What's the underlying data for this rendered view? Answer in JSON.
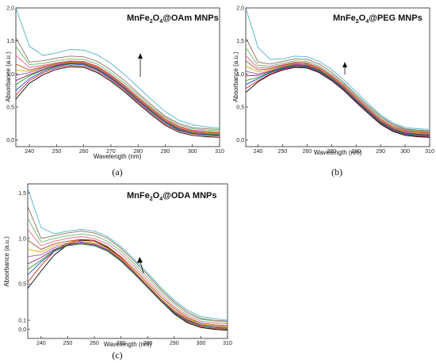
{
  "panels": [
    {
      "id": "a",
      "title_main": "MnFe",
      "title_sub1": "2",
      "title_mid": "O",
      "title_sub2": "4",
      "title_tail": "@OAm MNPs",
      "caption": "(a)",
      "xlabel": "Wavelength (nm)",
      "ylabel": "Absorbance (a.u.)",
      "xticks": [
        "240",
        "250",
        "260",
        "270",
        "280",
        "290",
        "300",
        "310"
      ],
      "yticks": [
        "0,0",
        "0,5",
        "1,0",
        "1,5",
        "2,0"
      ]
    },
    {
      "id": "b",
      "title_main": "MnFe",
      "title_sub1": "2",
      "title_mid": "O",
      "title_sub2": "4",
      "title_tail": "@PEG MNPs",
      "caption": "(b)",
      "xlabel": "Wavelength (nm)",
      "ylabel": "Absorbance (a.u.)",
      "xticks": [
        "240",
        "250",
        "260",
        "270",
        "280",
        "290",
        "300",
        "310"
      ],
      "yticks": [
        "0,0",
        "0,5",
        "1,0",
        "1,5",
        "2,0"
      ]
    },
    {
      "id": "c",
      "title_main": "MnFe",
      "title_sub1": "2",
      "title_mid": "O",
      "title_sub2": "4",
      "title_tail": "@ODA MNPs",
      "caption": "(c)",
      "xlabel": "Wavelength (nm)",
      "ylabel": "Absorbance (a.u.)",
      "xticks": [
        "240",
        "250",
        "260",
        "270",
        "280",
        "290",
        "300",
        "310"
      ],
      "yticks": [
        "0,0",
        "0,1",
        "0,5",
        "1,0",
        "1,5"
      ]
    }
  ],
  "chart_data": [
    {
      "type": "line",
      "panel": "a",
      "xlabel": "Wavelength (nm)",
      "ylabel": "Absorbance (a.u.)",
      "xlim": [
        235,
        310
      ],
      "ylim": [
        -0.1,
        2.0
      ],
      "x": [
        235,
        240,
        245,
        250,
        255,
        260,
        265,
        270,
        275,
        280,
        285,
        290,
        295,
        300,
        305,
        310
      ],
      "colors": [
        "#000000",
        "#d62728",
        "#1f3fd8",
        "#1a9a1a",
        "#8b1a6b",
        "#9b59b6",
        "#e6a800",
        "#a0522d",
        "#f06292",
        "#66bb6a",
        "#8d6e63",
        "#4fb3c8"
      ],
      "series": [
        {
          "values": [
            0.62,
            0.86,
            0.99,
            1.07,
            1.11,
            1.1,
            1.02,
            0.89,
            0.73,
            0.55,
            0.38,
            0.22,
            0.12,
            0.07,
            0.05,
            0.04
          ]
        },
        {
          "values": [
            0.68,
            0.9,
            1.02,
            1.09,
            1.13,
            1.12,
            1.04,
            0.91,
            0.75,
            0.57,
            0.4,
            0.24,
            0.14,
            0.09,
            0.07,
            0.06
          ]
        },
        {
          "values": [
            0.75,
            0.93,
            1.04,
            1.11,
            1.15,
            1.14,
            1.06,
            0.93,
            0.77,
            0.59,
            0.42,
            0.26,
            0.15,
            0.1,
            0.08,
            0.07
          ]
        },
        {
          "values": [
            0.84,
            0.97,
            1.06,
            1.12,
            1.16,
            1.15,
            1.07,
            0.94,
            0.78,
            0.6,
            0.43,
            0.27,
            0.16,
            0.11,
            0.09,
            0.08
          ]
        },
        {
          "values": [
            0.9,
            0.99,
            1.07,
            1.13,
            1.17,
            1.16,
            1.08,
            0.95,
            0.79,
            0.61,
            0.44,
            0.28,
            0.17,
            0.12,
            0.1,
            0.09
          ]
        },
        {
          "values": [
            0.98,
            1.02,
            1.09,
            1.14,
            1.18,
            1.17,
            1.09,
            0.96,
            0.8,
            0.62,
            0.45,
            0.29,
            0.18,
            0.12,
            0.1,
            0.09
          ]
        },
        {
          "values": [
            1.06,
            1.04,
            1.1,
            1.15,
            1.18,
            1.17,
            1.1,
            0.97,
            0.81,
            0.63,
            0.46,
            0.3,
            0.19,
            0.13,
            0.11,
            0.1
          ]
        },
        {
          "values": [
            1.15,
            1.06,
            1.11,
            1.16,
            1.19,
            1.18,
            1.11,
            0.98,
            0.82,
            0.64,
            0.47,
            0.31,
            0.2,
            0.14,
            0.12,
            0.11
          ]
        },
        {
          "values": [
            1.28,
            1.1,
            1.13,
            1.17,
            1.2,
            1.19,
            1.12,
            0.99,
            0.83,
            0.65,
            0.48,
            0.32,
            0.21,
            0.15,
            0.13,
            0.12
          ]
        },
        {
          "values": [
            1.42,
            1.14,
            1.16,
            1.2,
            1.23,
            1.22,
            1.15,
            1.02,
            0.86,
            0.68,
            0.5,
            0.34,
            0.23,
            0.17,
            0.15,
            0.14
          ]
        },
        {
          "values": [
            1.55,
            1.18,
            1.2,
            1.24,
            1.27,
            1.26,
            1.19,
            1.06,
            0.9,
            0.71,
            0.53,
            0.36,
            0.25,
            0.19,
            0.17,
            0.16
          ]
        },
        {
          "values": [
            2.0,
            1.42,
            1.28,
            1.32,
            1.37,
            1.36,
            1.29,
            1.16,
            0.99,
            0.8,
            0.61,
            0.43,
            0.3,
            0.23,
            0.2,
            0.18
          ]
        }
      ]
    },
    {
      "type": "line",
      "panel": "b",
      "xlabel": "Wavelength (nm)",
      "ylabel": "Absorbance (a.u.)",
      "xlim": [
        235,
        310
      ],
      "ylim": [
        -0.1,
        2.0
      ],
      "x": [
        235,
        240,
        245,
        250,
        255,
        260,
        265,
        270,
        275,
        280,
        285,
        290,
        295,
        300,
        305,
        310
      ],
      "colors": [
        "#000000",
        "#d62728",
        "#1f3fd8",
        "#1a9a1a",
        "#8b1a6b",
        "#9b59b6",
        "#e6a800",
        "#a0522d",
        "#f06292",
        "#66bb6a",
        "#8d6e63",
        "#4fb3c8"
      ],
      "series": [
        {
          "values": [
            0.72,
            0.88,
            0.99,
            1.06,
            1.1,
            1.09,
            1.02,
            0.9,
            0.75,
            0.57,
            0.4,
            0.24,
            0.13,
            0.07,
            0.05,
            0.04
          ]
        },
        {
          "values": [
            0.78,
            0.9,
            1.0,
            1.07,
            1.11,
            1.1,
            1.03,
            0.91,
            0.76,
            0.58,
            0.41,
            0.25,
            0.14,
            0.08,
            0.06,
            0.05
          ]
        },
        {
          "values": [
            0.84,
            0.93,
            1.02,
            1.08,
            1.12,
            1.11,
            1.04,
            0.92,
            0.77,
            0.59,
            0.42,
            0.26,
            0.15,
            0.09,
            0.07,
            0.06
          ]
        },
        {
          "values": [
            0.9,
            0.95,
            1.03,
            1.09,
            1.13,
            1.12,
            1.05,
            0.93,
            0.78,
            0.6,
            0.43,
            0.27,
            0.16,
            0.1,
            0.08,
            0.07
          ]
        },
        {
          "values": [
            0.97,
            0.98,
            1.04,
            1.1,
            1.14,
            1.13,
            1.06,
            0.94,
            0.79,
            0.61,
            0.44,
            0.28,
            0.17,
            0.11,
            0.09,
            0.08
          ]
        },
        {
          "values": [
            1.04,
            1.0,
            1.05,
            1.11,
            1.15,
            1.14,
            1.07,
            0.95,
            0.8,
            0.62,
            0.45,
            0.29,
            0.18,
            0.12,
            0.1,
            0.09
          ]
        },
        {
          "values": [
            1.12,
            1.03,
            1.07,
            1.12,
            1.16,
            1.15,
            1.08,
            0.96,
            0.81,
            0.63,
            0.46,
            0.3,
            0.19,
            0.13,
            0.11,
            0.1
          ]
        },
        {
          "values": [
            1.2,
            1.06,
            1.08,
            1.13,
            1.17,
            1.16,
            1.09,
            0.97,
            0.82,
            0.64,
            0.47,
            0.31,
            0.2,
            0.14,
            0.12,
            0.11
          ]
        },
        {
          "values": [
            1.28,
            1.09,
            1.1,
            1.14,
            1.18,
            1.17,
            1.1,
            0.98,
            0.83,
            0.65,
            0.48,
            0.32,
            0.21,
            0.15,
            0.13,
            0.12
          ]
        },
        {
          "values": [
            1.4,
            1.13,
            1.12,
            1.16,
            1.2,
            1.19,
            1.12,
            1.0,
            0.85,
            0.67,
            0.5,
            0.34,
            0.23,
            0.16,
            0.14,
            0.13
          ]
        },
        {
          "values": [
            1.55,
            1.18,
            1.15,
            1.19,
            1.23,
            1.22,
            1.15,
            1.03,
            0.87,
            0.69,
            0.52,
            0.36,
            0.24,
            0.17,
            0.15,
            0.14
          ]
        },
        {
          "values": [
            2.0,
            1.4,
            1.22,
            1.23,
            1.27,
            1.26,
            1.19,
            1.07,
            0.91,
            0.73,
            0.55,
            0.38,
            0.26,
            0.19,
            0.17,
            0.16
          ]
        }
      ]
    },
    {
      "type": "line",
      "panel": "c",
      "xlabel": "Wavelength (nm)",
      "ylabel": "Absorbance (a.u.)",
      "xlim": [
        235,
        310
      ],
      "ylim": [
        -0.1,
        1.6
      ],
      "x": [
        235,
        240,
        245,
        250,
        255,
        260,
        265,
        270,
        275,
        280,
        285,
        290,
        295,
        300,
        305,
        310
      ],
      "colors": [
        "#000000",
        "#d62728",
        "#1f3fd8",
        "#1a9a1a",
        "#8b1a6b",
        "#9b59b6",
        "#e6a800",
        "#a0522d",
        "#f06292",
        "#66bb6a",
        "#8d6e63",
        "#4fb3c8"
      ],
      "series": [
        {
          "values": [
            0.45,
            0.64,
            0.82,
            0.93,
            0.98,
            0.97,
            0.9,
            0.78,
            0.63,
            0.47,
            0.31,
            0.17,
            0.07,
            0.02,
            0.0,
            -0.01
          ]
        },
        {
          "values": [
            0.52,
            0.7,
            0.86,
            0.95,
            0.99,
            0.98,
            0.91,
            0.79,
            0.64,
            0.48,
            0.32,
            0.18,
            0.08,
            0.03,
            0.01,
            0.0
          ]
        },
        {
          "values": [
            0.6,
            0.74,
            0.86,
            0.92,
            0.94,
            0.92,
            0.86,
            0.75,
            0.61,
            0.46,
            0.31,
            0.18,
            0.09,
            0.04,
            0.02,
            0.01
          ]
        },
        {
          "values": [
            0.66,
            0.76,
            0.87,
            0.92,
            0.94,
            0.92,
            0.86,
            0.75,
            0.61,
            0.46,
            0.31,
            0.18,
            0.09,
            0.04,
            0.02,
            0.01
          ]
        },
        {
          "values": [
            0.72,
            0.79,
            0.88,
            0.93,
            0.95,
            0.93,
            0.87,
            0.76,
            0.62,
            0.47,
            0.32,
            0.19,
            0.1,
            0.05,
            0.03,
            0.02
          ]
        },
        {
          "values": [
            0.8,
            0.82,
            0.9,
            0.94,
            0.96,
            0.94,
            0.88,
            0.77,
            0.63,
            0.48,
            0.33,
            0.2,
            0.11,
            0.05,
            0.03,
            0.02
          ]
        },
        {
          "values": [
            0.88,
            0.85,
            0.92,
            0.95,
            0.97,
            0.95,
            0.89,
            0.78,
            0.64,
            0.49,
            0.34,
            0.21,
            0.12,
            0.06,
            0.04,
            0.03
          ]
        },
        {
          "values": [
            0.98,
            0.88,
            0.94,
            0.97,
            0.99,
            0.97,
            0.91,
            0.8,
            0.66,
            0.51,
            0.36,
            0.23,
            0.13,
            0.07,
            0.05,
            0.04
          ]
        },
        {
          "values": [
            1.1,
            0.92,
            0.97,
            1.0,
            1.02,
            1.0,
            0.94,
            0.83,
            0.69,
            0.54,
            0.39,
            0.25,
            0.15,
            0.09,
            0.07,
            0.06
          ]
        },
        {
          "values": [
            1.22,
            0.96,
            1.0,
            1.03,
            1.05,
            1.03,
            0.97,
            0.86,
            0.72,
            0.57,
            0.42,
            0.28,
            0.17,
            0.11,
            0.09,
            0.08
          ]
        },
        {
          "values": [
            1.35,
            1.0,
            1.03,
            1.06,
            1.08,
            1.06,
            1.0,
            0.89,
            0.75,
            0.6,
            0.44,
            0.3,
            0.19,
            0.12,
            0.1,
            0.09
          ]
        },
        {
          "values": [
            1.55,
            1.12,
            1.05,
            1.08,
            1.1,
            1.08,
            1.02,
            0.91,
            0.77,
            0.62,
            0.46,
            0.32,
            0.21,
            0.14,
            0.12,
            0.1
          ]
        }
      ]
    }
  ]
}
